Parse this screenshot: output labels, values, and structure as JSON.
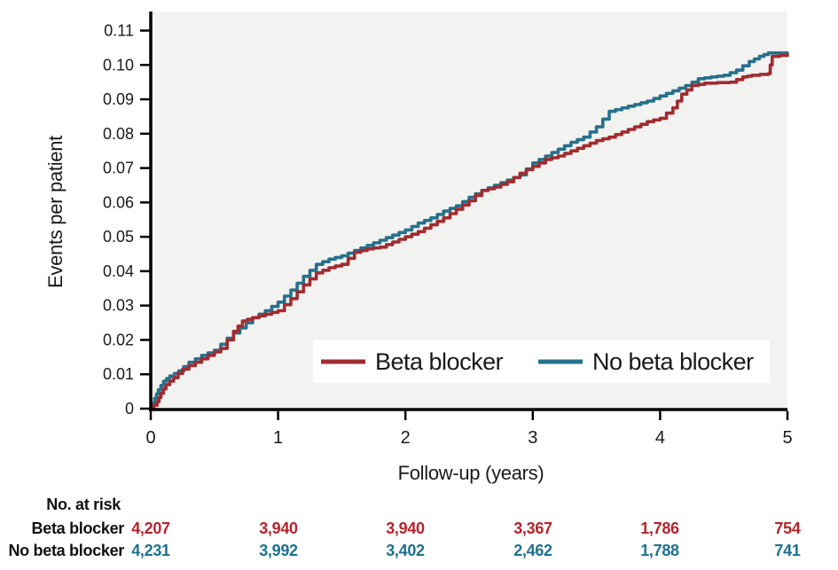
{
  "colors": {
    "red_line": "#A02C30",
    "teal_line": "#26718C",
    "red_text": "#B5242B",
    "teal_text": "#1D7190",
    "plot_bg": "#F2F2F1",
    "axis": "#000000",
    "text": "#1A1A1A",
    "legend_bg": "#FFFFFF"
  },
  "chart_data": {
    "type": "line",
    "step": true,
    "title": "",
    "xlabel": "Follow-up (years)",
    "ylabel": "Events per patient",
    "xlim": [
      0,
      5
    ],
    "ylim": [
      0,
      0.11
    ],
    "grid": false,
    "legend_position": "inside-bottom-right",
    "x_ticks": [
      {
        "v": 0,
        "label": "0"
      },
      {
        "v": 1,
        "label": "1"
      },
      {
        "v": 2,
        "label": "2"
      },
      {
        "v": 3,
        "label": "3"
      },
      {
        "v": 4,
        "label": "4"
      },
      {
        "v": 5,
        "label": "5"
      }
    ],
    "y_ticks": [
      {
        "v": 0,
        "label": "0"
      },
      {
        "v": 0.01,
        "label": "0.01"
      },
      {
        "v": 0.02,
        "label": "0.02"
      },
      {
        "v": 0.03,
        "label": "0.03"
      },
      {
        "v": 0.04,
        "label": "0.04"
      },
      {
        "v": 0.05,
        "label": "0.05"
      },
      {
        "v": 0.06,
        "label": "0.06"
      },
      {
        "v": 0.07,
        "label": "0.07"
      },
      {
        "v": 0.08,
        "label": "0.08"
      },
      {
        "v": 0.09,
        "label": "0.09"
      },
      {
        "v": 0.1,
        "label": "0.10"
      },
      {
        "v": 0.11,
        "label": "0.11"
      }
    ],
    "series": [
      {
        "name": "No beta blocker",
        "color_key": "teal_line",
        "points": [
          [
            0,
            0
          ],
          [
            0.03,
            0.003
          ],
          [
            0.06,
            0.0055
          ],
          [
            0.1,
            0.008
          ],
          [
            0.15,
            0.0095
          ],
          [
            0.22,
            0.011
          ],
          [
            0.3,
            0.0135
          ],
          [
            0.4,
            0.0155
          ],
          [
            0.5,
            0.017
          ],
          [
            0.6,
            0.0205
          ],
          [
            0.7,
            0.0235
          ],
          [
            0.8,
            0.0265
          ],
          [
            0.9,
            0.0285
          ],
          [
            1,
            0.031
          ],
          [
            1.1,
            0.0345
          ],
          [
            1.2,
            0.0385
          ],
          [
            1.3,
            0.042
          ],
          [
            1.4,
            0.0435
          ],
          [
            1.5,
            0.0445
          ],
          [
            1.6,
            0.046
          ],
          [
            1.7,
            0.0475
          ],
          [
            1.8,
            0.049
          ],
          [
            1.9,
            0.0505
          ],
          [
            2,
            0.052
          ],
          [
            2.1,
            0.054
          ],
          [
            2.2,
            0.0555
          ],
          [
            2.3,
            0.0575
          ],
          [
            2.4,
            0.059
          ],
          [
            2.5,
            0.0615
          ],
          [
            2.6,
            0.0635
          ],
          [
            2.7,
            0.065
          ],
          [
            2.8,
            0.0665
          ],
          [
            2.9,
            0.068
          ],
          [
            3,
            0.0715
          ],
          [
            3.1,
            0.0735
          ],
          [
            3.2,
            0.0755
          ],
          [
            3.3,
            0.0775
          ],
          [
            3.4,
            0.079
          ],
          [
            3.5,
            0.082
          ],
          [
            3.6,
            0.0865
          ],
          [
            3.7,
            0.0875
          ],
          [
            3.8,
            0.0885
          ],
          [
            3.9,
            0.0895
          ],
          [
            4,
            0.091
          ],
          [
            4.1,
            0.0925
          ],
          [
            4.2,
            0.094
          ],
          [
            4.3,
            0.096
          ],
          [
            4.4,
            0.0965
          ],
          [
            4.5,
            0.097
          ],
          [
            4.6,
            0.0985
          ],
          [
            4.7,
            0.101
          ],
          [
            4.78,
            0.1025
          ],
          [
            4.85,
            0.1035
          ],
          [
            5,
            0.1035
          ]
        ]
      },
      {
        "name": "Beta blocker",
        "color_key": "red_line",
        "points": [
          [
            0,
            0
          ],
          [
            0.05,
            0.002
          ],
          [
            0.08,
            0.0045
          ],
          [
            0.12,
            0.007
          ],
          [
            0.18,
            0.009
          ],
          [
            0.25,
            0.0115
          ],
          [
            0.35,
            0.0135
          ],
          [
            0.45,
            0.0155
          ],
          [
            0.55,
            0.0175
          ],
          [
            0.65,
            0.0225
          ],
          [
            0.72,
            0.0255
          ],
          [
            0.8,
            0.0265
          ],
          [
            0.9,
            0.0275
          ],
          [
            1,
            0.0285
          ],
          [
            1.1,
            0.032
          ],
          [
            1.2,
            0.036
          ],
          [
            1.3,
            0.0395
          ],
          [
            1.4,
            0.041
          ],
          [
            1.5,
            0.042
          ],
          [
            1.6,
            0.0455
          ],
          [
            1.7,
            0.0465
          ],
          [
            1.8,
            0.047
          ],
          [
            1.9,
            0.0485
          ],
          [
            2,
            0.05
          ],
          [
            2.1,
            0.0515
          ],
          [
            2.2,
            0.0535
          ],
          [
            2.3,
            0.0555
          ],
          [
            2.4,
            0.058
          ],
          [
            2.5,
            0.0605
          ],
          [
            2.6,
            0.0635
          ],
          [
            2.7,
            0.0645
          ],
          [
            2.8,
            0.066
          ],
          [
            2.9,
            0.0685
          ],
          [
            3,
            0.0705
          ],
          [
            3.1,
            0.0725
          ],
          [
            3.2,
            0.0735
          ],
          [
            3.3,
            0.075
          ],
          [
            3.4,
            0.0765
          ],
          [
            3.5,
            0.078
          ],
          [
            3.6,
            0.079
          ],
          [
            3.7,
            0.0805
          ],
          [
            3.8,
            0.082
          ],
          [
            3.9,
            0.0835
          ],
          [
            4,
            0.0845
          ],
          [
            4.1,
            0.0875
          ],
          [
            4.17,
            0.0915
          ],
          [
            4.25,
            0.094
          ],
          [
            4.35,
            0.0947
          ],
          [
            4.55,
            0.095
          ],
          [
            4.65,
            0.0965
          ],
          [
            4.72,
            0.097
          ],
          [
            4.85,
            0.0975
          ],
          [
            4.88,
            0.1025
          ],
          [
            5,
            0.103
          ]
        ]
      }
    ],
    "legend": {
      "items": [
        {
          "label": "Beta blocker",
          "color_key": "red_line"
        },
        {
          "label": "No beta blocker",
          "color_key": "teal_line"
        }
      ]
    }
  },
  "risk_table": {
    "title": "No. at risk",
    "columns_years": [
      0,
      1,
      2,
      3,
      4,
      5
    ],
    "rows": [
      {
        "label": "Beta blocker",
        "color_key": "red_text",
        "values": [
          "4,207",
          "3,940",
          "3,940",
          "3,367",
          "1,786",
          "754"
        ]
      },
      {
        "label": "No beta blocker",
        "color_key": "teal_text",
        "values": [
          "4,231",
          "3,992",
          "3,402",
          "2,462",
          "1,788",
          "741"
        ]
      }
    ]
  }
}
